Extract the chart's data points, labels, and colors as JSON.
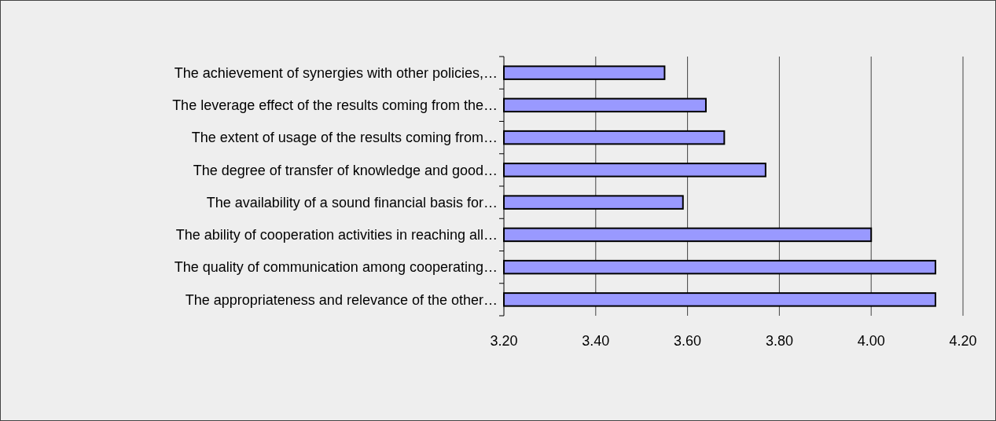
{
  "chart_data": {
    "type": "bar",
    "orientation": "horizontal",
    "categories": [
      "The achievement of synergies with other policies,…",
      "The leverage effect of the results coming from the…",
      "The extent of usage of the results coming from…",
      "The degree of transfer of knowledge and good…",
      "The availability of a sound financial basis for…",
      "The ability of cooperation activities in reaching all…",
      "The quality of communication among cooperating…",
      "The appropriateness and relevance of the other…"
    ],
    "values": [
      3.55,
      3.64,
      3.68,
      3.77,
      3.59,
      4.0,
      4.14,
      4.14
    ],
    "color": "#9999ff",
    "xlim": [
      3.2,
      4.2
    ],
    "xticks": [
      {
        "value": 3.2,
        "label": "3.20"
      },
      {
        "value": 3.4,
        "label": "3.40"
      },
      {
        "value": 3.6,
        "label": "3.60"
      },
      {
        "value": 3.8,
        "label": "3.80"
      },
      {
        "value": 4.0,
        "label": "4.00"
      },
      {
        "value": 4.2,
        "label": "4.20"
      }
    ],
    "grid": "x"
  }
}
